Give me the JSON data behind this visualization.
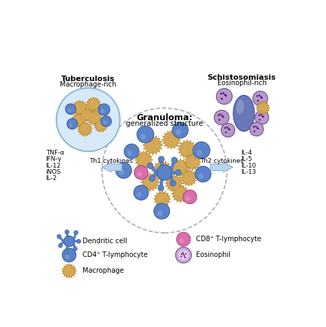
{
  "tb_title": "Tuberculosis",
  "tb_subtitle": "Macrophage-rich",
  "schisto_title": "Schistosomiasis",
  "schisto_subtitle": "Eosinophil-rich",
  "granuloma_title": "Granuloma:",
  "granuloma_subtitle": "generalized structure",
  "th1_label": "Th1 cytokines",
  "th2_label": "Th2 cytokines",
  "th1_cytokines": [
    "TNF-α",
    "IFN-γ",
    "IL-12",
    "iNOS",
    "IL-2"
  ],
  "th2_cytokines": [
    "IL-4",
    "IL-5",
    "IL-10",
    "IL-13"
  ],
  "bg_color": "#ffffff",
  "blue_color": "#5b82c8",
  "blue_light": "#7a9de0",
  "gold_color": "#d4a855",
  "gold_edge": "#b8892a",
  "pink_color": "#d96faa",
  "pink_edge": "#b04080",
  "purple_color": "#9370b0",
  "purple_edge": "#6a4a8a",
  "purple_spot": "#5a2070",
  "dendritic_color": "#5b82c8",
  "dendritic_edge": "#3a5fa0",
  "tb_fill": "#d8eaf8",
  "tb_edge": "#8ab8d8",
  "arrow_fill": "#b8d4f0",
  "arrow_edge": "#8ab0d8",
  "gran_edge": "#aaaaaa",
  "gran_bg": "#ffffff",
  "egg_fill": "#7888c8",
  "egg_edge": "#5060a0",
  "egg_hilite": "#9aaade"
}
